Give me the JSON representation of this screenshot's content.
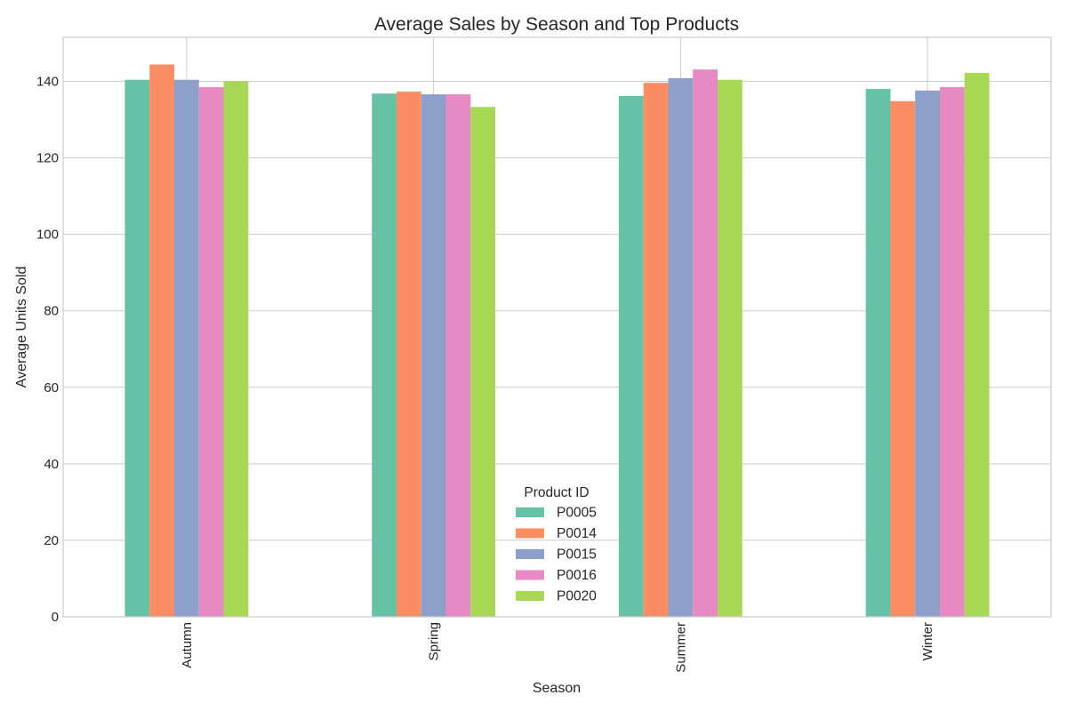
{
  "chart_data": {
    "type": "bar",
    "title": "Average Sales by Season and Top Products",
    "xlabel": "Season",
    "ylabel": "Average Units Sold",
    "categories": [
      "Autumn",
      "Spring",
      "Summer",
      "Winter"
    ],
    "ylim": [
      0,
      151.5
    ],
    "yticks": [
      0,
      20,
      40,
      60,
      80,
      100,
      120,
      140
    ],
    "grid": true,
    "legend": {
      "title": "Product ID",
      "placement": "bottom-center"
    },
    "series": [
      {
        "name": "P0005",
        "color": "#66c2a5",
        "values": [
          140.4,
          136.8,
          136.2,
          138.0
        ]
      },
      {
        "name": "P0014",
        "color": "#fc8d62",
        "values": [
          144.4,
          137.3,
          139.6,
          134.8
        ]
      },
      {
        "name": "P0015",
        "color": "#8da0cb",
        "values": [
          140.4,
          136.6,
          140.8,
          137.6
        ]
      },
      {
        "name": "P0016",
        "color": "#e78ac3",
        "values": [
          138.5,
          136.6,
          143.1,
          138.5
        ]
      },
      {
        "name": "P0020",
        "color": "#a6d854",
        "values": [
          140.0,
          133.3,
          140.4,
          142.2
        ]
      }
    ]
  }
}
